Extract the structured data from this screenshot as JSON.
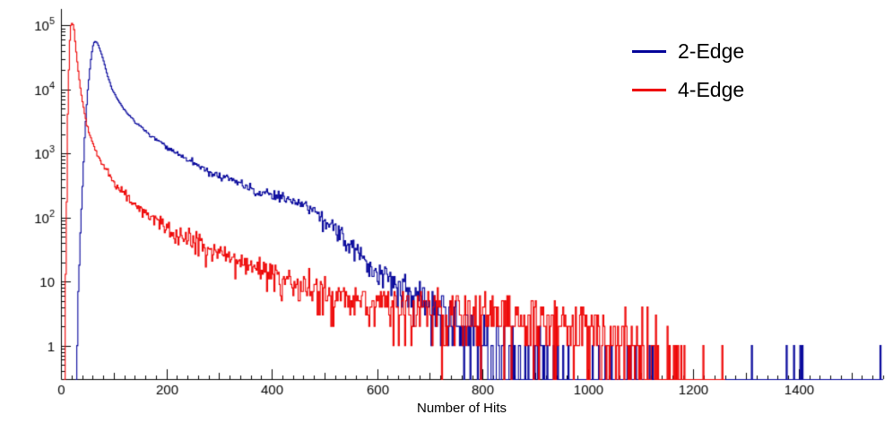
{
  "chart_data": {
    "type": "line",
    "title": "",
    "xlabel": "Number of Hits",
    "ylabel": "",
    "x_range": [
      0,
      1560
    ],
    "y_range": [
      0.3,
      180000
    ],
    "y_scale": "log",
    "grid": false,
    "legend_position": "top-right",
    "x_ticks_labeled": [
      0,
      200,
      400,
      600,
      800,
      1000,
      1200,
      1400
    ],
    "y_ticks_labeled": [
      "1",
      "10",
      "10^2",
      "10^3",
      "10^4",
      "10^5"
    ],
    "x_minor_step": 20,
    "x_mid_step": 100,
    "x_label_step": 200,
    "bin_width": 2,
    "noise_seed": 9,
    "noise_scale": 1.6,
    "series": [
      {
        "name": "2-Edge",
        "color": "#000099",
        "anchors": [
          [
            28,
            0.3
          ],
          [
            33,
            5
          ],
          [
            38,
            80
          ],
          [
            44,
            1200
          ],
          [
            50,
            8000
          ],
          [
            56,
            25000
          ],
          [
            60,
            45000
          ],
          [
            64,
            57000
          ],
          [
            70,
            52000
          ],
          [
            78,
            34000
          ],
          [
            88,
            17000
          ],
          [
            97,
            10000
          ],
          [
            110,
            6500
          ],
          [
            125,
            4300
          ],
          [
            145,
            2900
          ],
          [
            170,
            1900
          ],
          [
            200,
            1250
          ],
          [
            225,
            950
          ],
          [
            250,
            720
          ],
          [
            280,
            540
          ],
          [
            310,
            420
          ],
          [
            340,
            330
          ],
          [
            370,
            270
          ],
          [
            400,
            230
          ],
          [
            430,
            195
          ],
          [
            455,
            165
          ],
          [
            475,
            135
          ],
          [
            495,
            105
          ],
          [
            510,
            80
          ],
          [
            525,
            58
          ],
          [
            540,
            42
          ],
          [
            555,
            32
          ],
          [
            570,
            25
          ],
          [
            590,
            18
          ],
          [
            610,
            13
          ],
          [
            630,
            10
          ],
          [
            660,
            7
          ],
          [
            690,
            4.8
          ],
          [
            720,
            3.3
          ],
          [
            750,
            2.3
          ],
          [
            780,
            1.6
          ],
          [
            810,
            1.15
          ],
          [
            840,
            0.8
          ],
          [
            880,
            0.5
          ],
          [
            930,
            0.3
          ],
          [
            980,
            0.19
          ],
          [
            1040,
            0.12
          ],
          [
            1100,
            0.085
          ],
          [
            1180,
            0.06
          ],
          [
            1280,
            0.045
          ],
          [
            1400,
            0.038
          ],
          [
            1560,
            0.033
          ]
        ]
      },
      {
        "name": "4-Edge",
        "color": "#ee0000",
        "anchors": [
          [
            7,
            0.3
          ],
          [
            10,
            40
          ],
          [
            13,
            4000
          ],
          [
            16,
            45000
          ],
          [
            19,
            100000
          ],
          [
            22,
            112000
          ],
          [
            25,
            85000
          ],
          [
            28,
            45000
          ],
          [
            34,
            16000
          ],
          [
            40,
            7000
          ],
          [
            50,
            2600
          ],
          [
            60,
            1500
          ],
          [
            68,
            1000
          ],
          [
            80,
            620
          ],
          [
            100,
            360
          ],
          [
            120,
            230
          ],
          [
            140,
            160
          ],
          [
            160,
            115
          ],
          [
            175,
            100
          ],
          [
            200,
            72
          ],
          [
            240,
            48
          ],
          [
            280,
            33
          ],
          [
            320,
            23
          ],
          [
            360,
            17
          ],
          [
            400,
            12
          ],
          [
            420,
            10
          ],
          [
            460,
            8
          ],
          [
            500,
            6.5
          ],
          [
            550,
            5.2
          ],
          [
            600,
            4.4
          ],
          [
            650,
            3.8
          ],
          [
            700,
            3.3
          ],
          [
            750,
            3
          ],
          [
            800,
            2.8
          ],
          [
            850,
            2.6
          ],
          [
            900,
            2.4
          ],
          [
            950,
            2.2
          ],
          [
            1000,
            2
          ],
          [
            1050,
            1.6
          ],
          [
            1080,
            1.3
          ],
          [
            1110,
            0.9
          ],
          [
            1135,
            0.55
          ],
          [
            1160,
            0.3
          ],
          [
            1185,
            0.12
          ],
          [
            1215,
            0.05
          ],
          [
            1260,
            0.01
          ]
        ]
      }
    ]
  }
}
